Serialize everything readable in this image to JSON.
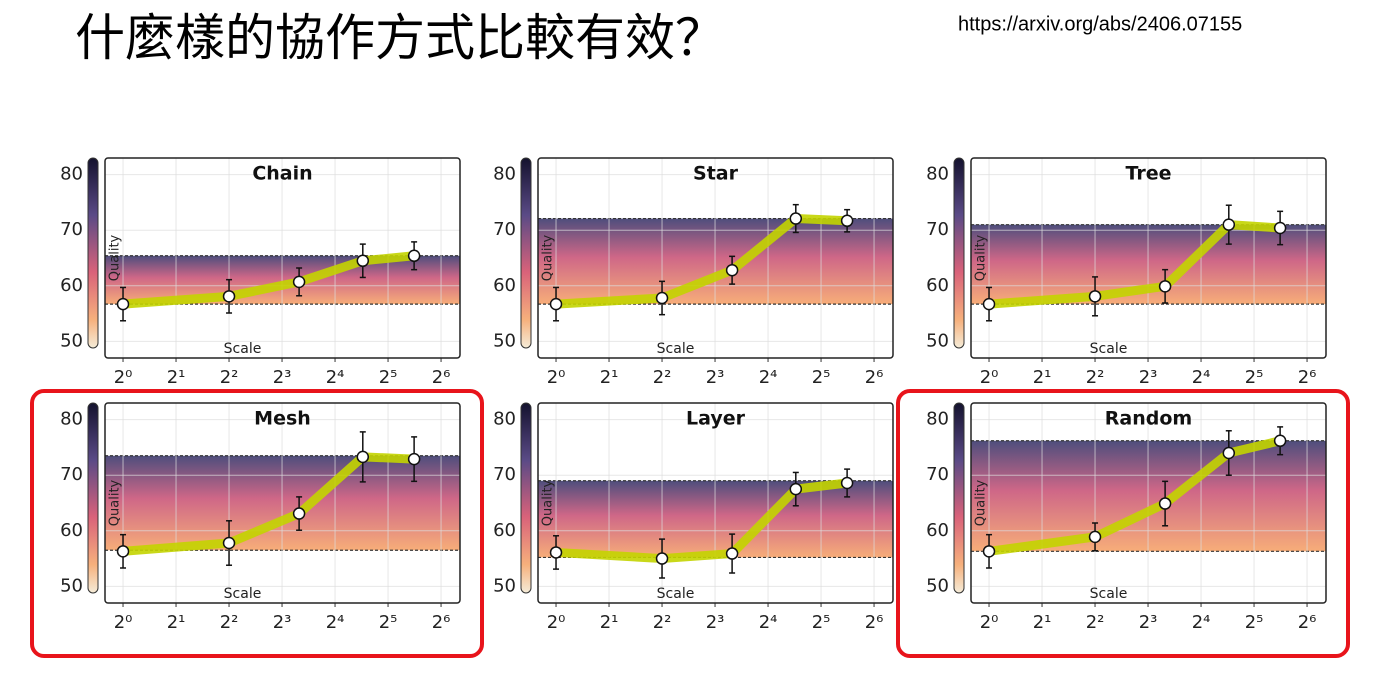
{
  "slide": {
    "title": "什麼樣的協作方式比較有效？",
    "url": "https://arxiv.org/abs/2406.07155"
  },
  "chart_data": [
    {
      "type": "line",
      "title": "Chain",
      "xlabel": "Scale",
      "ylabel": "Quality",
      "xscale": "log",
      "grid": true,
      "highlight": false,
      "color": "#c3d400",
      "x": [
        1,
        4,
        10,
        23,
        45
      ],
      "values": [
        56.7,
        58.1,
        60.7,
        64.5,
        65.4
      ],
      "errors": [
        3,
        3,
        2.5,
        3,
        2.5
      ],
      "band": [
        56.7,
        65.4
      ],
      "xlim": [
        0.79,
        82
      ],
      "ylim": [
        47,
        83
      ],
      "xticks": [
        {
          "value": 1,
          "label": "2⁰"
        },
        {
          "value": 2,
          "label": "2¹"
        },
        {
          "value": 4,
          "label": "2²"
        },
        {
          "value": 8,
          "label": "2³"
        },
        {
          "value": 16,
          "label": "2⁴"
        },
        {
          "value": 32,
          "label": "2⁵"
        },
        {
          "value": 64,
          "label": "2⁶"
        }
      ],
      "yticks": [
        50,
        60,
        70,
        80
      ]
    },
    {
      "type": "line",
      "title": "Star",
      "xlabel": "Scale",
      "ylabel": "Quality",
      "xscale": "log",
      "grid": true,
      "highlight": false,
      "color": "#c3d400",
      "x": [
        1,
        4,
        10,
        23,
        45
      ],
      "values": [
        56.7,
        57.8,
        62.8,
        72.1,
        71.7
      ],
      "errors": [
        3,
        3,
        2.5,
        2.5,
        2
      ],
      "band": [
        56.7,
        72.1
      ],
      "xlim": [
        0.79,
        82
      ],
      "ylim": [
        47,
        83
      ],
      "xticks": [
        {
          "value": 1,
          "label": "2⁰"
        },
        {
          "value": 2,
          "label": "2¹"
        },
        {
          "value": 4,
          "label": "2²"
        },
        {
          "value": 8,
          "label": "2³"
        },
        {
          "value": 16,
          "label": "2⁴"
        },
        {
          "value": 32,
          "label": "2⁵"
        },
        {
          "value": 64,
          "label": "2⁶"
        }
      ],
      "yticks": [
        50,
        60,
        70,
        80
      ]
    },
    {
      "type": "line",
      "title": "Tree",
      "xlabel": "Scale",
      "ylabel": "Quality",
      "xscale": "log",
      "grid": true,
      "highlight": false,
      "color": "#c3d400",
      "x": [
        1,
        4,
        10,
        23,
        45
      ],
      "values": [
        56.7,
        58.1,
        59.9,
        71,
        70.4
      ],
      "errors": [
        3,
        3.5,
        3,
        3.5,
        3
      ],
      "band": [
        56.7,
        71
      ],
      "xlim": [
        0.79,
        82
      ],
      "ylim": [
        47,
        83
      ],
      "xticks": [
        {
          "value": 1,
          "label": "2⁰"
        },
        {
          "value": 2,
          "label": "2¹"
        },
        {
          "value": 4,
          "label": "2²"
        },
        {
          "value": 8,
          "label": "2³"
        },
        {
          "value": 16,
          "label": "2⁴"
        },
        {
          "value": 32,
          "label": "2⁵"
        },
        {
          "value": 64,
          "label": "2⁶"
        }
      ],
      "yticks": [
        50,
        60,
        70,
        80
      ]
    },
    {
      "type": "line",
      "title": "Mesh",
      "xlabel": "Scale",
      "ylabel": "Quality",
      "xscale": "log",
      "grid": true,
      "highlight": true,
      "color": "#c3d400",
      "x": [
        1,
        4,
        10,
        23,
        45
      ],
      "values": [
        56.3,
        57.8,
        63.1,
        73.3,
        72.9
      ],
      "errors": [
        3,
        4,
        3,
        4.5,
        4
      ],
      "band": [
        56.5,
        73.5
      ],
      "xlim": [
        0.79,
        82
      ],
      "ylim": [
        47,
        83
      ],
      "xticks": [
        {
          "value": 1,
          "label": "2⁰"
        },
        {
          "value": 2,
          "label": "2¹"
        },
        {
          "value": 4,
          "label": "2²"
        },
        {
          "value": 8,
          "label": "2³"
        },
        {
          "value": 16,
          "label": "2⁴"
        },
        {
          "value": 32,
          "label": "2⁵"
        },
        {
          "value": 64,
          "label": "2⁶"
        }
      ],
      "yticks": [
        50,
        60,
        70,
        80
      ]
    },
    {
      "type": "line",
      "title": "Layer",
      "xlabel": "Scale",
      "ylabel": "Quality",
      "xscale": "log",
      "grid": true,
      "highlight": false,
      "color": "#c3d400",
      "x": [
        1,
        4,
        10,
        23,
        45
      ],
      "values": [
        56.1,
        55,
        55.9,
        67.5,
        68.6
      ],
      "errors": [
        3,
        3.5,
        3.5,
        3,
        2.5
      ],
      "band": [
        55.2,
        69
      ],
      "xlim": [
        0.79,
        82
      ],
      "ylim": [
        47,
        83
      ],
      "xticks": [
        {
          "value": 1,
          "label": "2⁰"
        },
        {
          "value": 2,
          "label": "2¹"
        },
        {
          "value": 4,
          "label": "2²"
        },
        {
          "value": 8,
          "label": "2³"
        },
        {
          "value": 16,
          "label": "2⁴"
        },
        {
          "value": 32,
          "label": "2⁵"
        },
        {
          "value": 64,
          "label": "2⁶"
        }
      ],
      "yticks": [
        50,
        60,
        70,
        80
      ]
    },
    {
      "type": "line",
      "title": "Random",
      "xlabel": "Scale",
      "ylabel": "Quality",
      "xscale": "log",
      "grid": true,
      "highlight": true,
      "color": "#c3d400",
      "x": [
        1,
        4,
        10,
        23,
        45
      ],
      "values": [
        56.3,
        58.9,
        64.9,
        74,
        76.2
      ],
      "errors": [
        3,
        2.5,
        4,
        4,
        2.5
      ],
      "band": [
        56.3,
        76.2
      ],
      "xlim": [
        0.79,
        82
      ],
      "ylim": [
        47,
        83
      ],
      "xticks": [
        {
          "value": 1,
          "label": "2⁰"
        },
        {
          "value": 2,
          "label": "2¹"
        },
        {
          "value": 4,
          "label": "2²"
        },
        {
          "value": 8,
          "label": "2³"
        },
        {
          "value": 16,
          "label": "2⁴"
        },
        {
          "value": 32,
          "label": "2⁵"
        },
        {
          "value": 64,
          "label": "2⁶"
        }
      ],
      "yticks": [
        50,
        60,
        70,
        80
      ]
    }
  ]
}
